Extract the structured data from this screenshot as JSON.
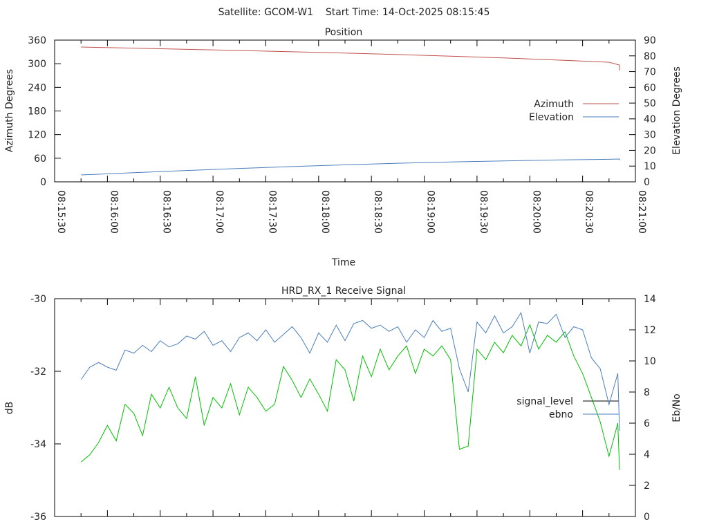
{
  "header": {
    "title": "Satellite: GCOM-W1    Start Time: 14-Oct-2025 08:15:45"
  },
  "chart_data": [
    {
      "type": "line",
      "title": "Position",
      "xlabel": "Time",
      "ylabel": "Azimuth Degrees",
      "y2label": "Elevation Degrees",
      "xlim": [
        "08:15:30",
        "08:21:00"
      ],
      "xticks": [
        "08:15:30",
        "08:16:00",
        "08:16:30",
        "08:17:00",
        "08:17:30",
        "08:18:00",
        "08:18:30",
        "08:19:00",
        "08:19:30",
        "08:20:00",
        "08:20:30",
        "08:21:00"
      ],
      "ylim": [
        0,
        360
      ],
      "yticks": [
        "0",
        "60",
        "120",
        "180",
        "240",
        "300",
        "360"
      ],
      "y2lim": [
        0,
        90
      ],
      "y2ticks": [
        "0",
        "10",
        "20",
        "30",
        "40",
        "50",
        "60",
        "70",
        "80",
        "90"
      ],
      "legend_position": "right",
      "x_start": "08:15:45",
      "x_step_seconds": 30,
      "series": [
        {
          "name": "Azimuth",
          "axis": "y",
          "color": "#c0504d",
          "values": [
            342.4,
            339.5,
            336.6,
            333.6,
            330.4,
            327.0,
            323.3,
            319.2,
            314.7,
            309.6,
            303.9,
            296.6,
            289.2,
            282.7
          ]
        },
        {
          "name": "Elevation",
          "axis": "y2",
          "color": "#4a7ebb",
          "values": [
            4.4,
            5.8,
            7.2,
            8.5,
            9.7,
            10.8,
            11.8,
            12.6,
            13.3,
            13.9,
            14.3,
            14.5,
            14.4,
            14.0,
            13.6
          ]
        }
      ]
    },
    {
      "type": "line",
      "title": "HRD_RX_1 Receive Signal",
      "ylabel": "dB",
      "y2label": "Eb/No",
      "xlim": [
        "08:15:30",
        "08:21:00"
      ],
      "ylim": [
        -36,
        -30
      ],
      "yticks": [
        "-36",
        "-34",
        "-32",
        "-30"
      ],
      "y2lim": [
        0,
        14
      ],
      "y2ticks": [
        "0",
        "2",
        "4",
        "6",
        "8",
        "10",
        "12",
        "14"
      ],
      "legend_position": "right",
      "x_start": "08:15:45",
      "x_step_seconds": 5,
      "series": [
        {
          "name": "signal_level",
          "axis": "y",
          "color": "#00c000",
          "legend_color": "#000000",
          "values": [
            -34.5,
            -34.3,
            -33.96,
            -33.49,
            -33.92,
            -32.91,
            -33.16,
            -33.77,
            -32.63,
            -33.01,
            -32.44,
            -33.01,
            -33.3,
            -32.15,
            -33.49,
            -32.72,
            -33.01,
            -32.34,
            -33.2,
            -32.44,
            -32.72,
            -33.1,
            -32.91,
            -31.87,
            -32.25,
            -32.72,
            -32.21,
            -32.63,
            -33.1,
            -31.68,
            -31.96,
            -32.82,
            -31.58,
            -32.15,
            -31.39,
            -31.96,
            -31.58,
            -31.3,
            -32.06,
            -31.39,
            -31.58,
            -31.3,
            -31.68,
            -34.15,
            -34.06,
            -31.39,
            -31.68,
            -31.2,
            -31.49,
            -31.01,
            -31.3,
            -30.72,
            -31.39,
            -31.01,
            -31.2,
            -30.91,
            -31.58,
            -32.06,
            -32.72,
            -33.39,
            -34.34,
            -33.43,
            -34.72
          ]
        },
        {
          "name": "ebno",
          "axis": "y2",
          "color": "#4a7ebb",
          "legend_color": "#4a7ebb",
          "values": [
            8.8,
            9.6,
            9.9,
            9.6,
            9.4,
            10.7,
            10.5,
            11.0,
            10.6,
            11.3,
            10.9,
            11.1,
            11.6,
            11.4,
            11.9,
            11.0,
            11.3,
            10.6,
            11.5,
            11.8,
            11.3,
            12.0,
            11.2,
            11.7,
            12.2,
            11.5,
            10.5,
            11.8,
            11.2,
            12.3,
            11.3,
            12.4,
            12.6,
            12.1,
            12.3,
            11.9,
            12.2,
            11.2,
            12.0,
            11.5,
            12.6,
            11.9,
            12.1,
            9.5,
            8.0,
            12.5,
            11.8,
            12.9,
            11.8,
            12.2,
            13.1,
            10.5,
            12.5,
            12.4,
            13.0,
            11.5,
            12.2,
            12.0,
            10.2,
            9.5,
            7.2,
            9.2,
            5.5
          ]
        }
      ]
    }
  ]
}
